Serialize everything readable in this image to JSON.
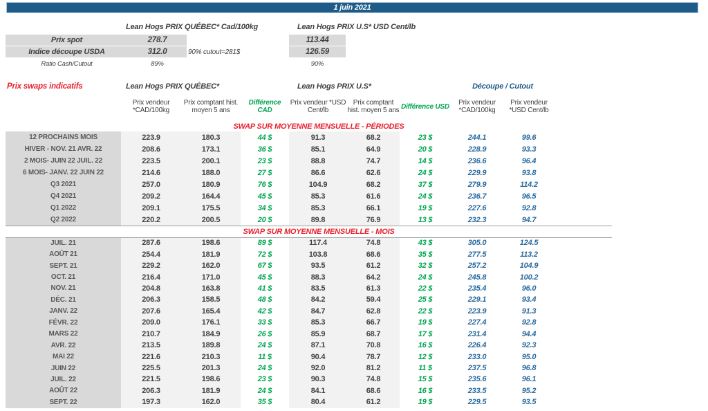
{
  "header": {
    "date": "1 juin 2021"
  },
  "colors": {
    "banner_blue": "#1f5b88",
    "accent_red": "#e8212e",
    "diff_green": "#00a651",
    "cutout_blue": "#2a6a9e",
    "label_gray_bg": "#d9d9d9",
    "band_gray_bg": "#f2f2f2"
  },
  "spot": {
    "quebec_title": "Lean Hogs PRIX QUÉBEC* Cad/100kg",
    "us_title": "Lean Hogs PRIX U.S* USD Cent/lb",
    "rows": [
      {
        "label": "Prix spot",
        "quebec": "278.7",
        "us": "113.44"
      },
      {
        "label": "Indice découpe USDA",
        "quebec": "312.0",
        "us": "126.59",
        "note": "90% cutout=281$"
      },
      {
        "label": "Ratio Cash/Cutout",
        "quebec": "89%",
        "us": "90%"
      }
    ]
  },
  "swaps": {
    "title": "Prix swaps indicatifs",
    "quebec_header": "Lean Hogs PRIX QUÉBEC*",
    "us_header": "Lean Hogs PRIX U.S*",
    "cutout_header": "Découpe / Cutout",
    "columns": [
      "Prix vendeur *CAD/100kg",
      "Prix comptant hist. moyen 5 ans",
      "Différence CAD",
      "Prix vendeur *USD Cent/lb",
      "Prix comptant hist. moyen 5 ans",
      "Différence USD",
      "Prix vendeur *CAD/100kg",
      "Prix vendeur *USD Cent/lb"
    ],
    "periods_title": "SWAP SUR MOYENNE MENSUELLE - PÉRIODES",
    "months_title": "SWAP SUR MOYENNE MENSUELLE - MOIS",
    "periods": [
      [
        "12 PROCHAINS MOIS",
        "223.9",
        "180.3",
        "44 $",
        "91.3",
        "68.2",
        "23 $",
        "244.1",
        "99.6"
      ],
      [
        "HIVER - NOV. 21 AVR. 22",
        "208.6",
        "173.1",
        "36 $",
        "85.1",
        "64.9",
        "20 $",
        "228.9",
        "93.3"
      ],
      [
        "2 MOIS- JUIN 22 JUIL. 22",
        "223.5",
        "200.1",
        "23 $",
        "88.8",
        "74.7",
        "14 $",
        "236.6",
        "96.4"
      ],
      [
        "6 MOIS- JANV. 22 JUIN 22",
        "214.6",
        "188.0",
        "27 $",
        "86.6",
        "62.6",
        "24 $",
        "229.9",
        "93.8"
      ],
      [
        "Q3 2021",
        "257.0",
        "180.9",
        "76 $",
        "104.9",
        "68.2",
        "37 $",
        "279.9",
        "114.2"
      ],
      [
        "Q4 2021",
        "209.2",
        "164.4",
        "45 $",
        "85.3",
        "61.6",
        "24 $",
        "236.7",
        "96.5"
      ],
      [
        "Q1 2022",
        "209.1",
        "175.5",
        "34 $",
        "85.3",
        "66.1",
        "19 $",
        "227.6",
        "92.8"
      ],
      [
        "Q2 2022",
        "220.2",
        "200.5",
        "20 $",
        "89.8",
        "76.9",
        "13 $",
        "232.3",
        "94.7"
      ]
    ],
    "months": [
      [
        "JUIL. 21",
        "287.6",
        "198.6",
        "89 $",
        "117.4",
        "74.8",
        "43 $",
        "305.0",
        "124.5"
      ],
      [
        "AOÛT 21",
        "254.4",
        "181.9",
        "72 $",
        "103.8",
        "68.6",
        "35 $",
        "277.5",
        "113.2"
      ],
      [
        "SEPT. 21",
        "229.2",
        "162.0",
        "67 $",
        "93.5",
        "61.2",
        "32 $",
        "257.2",
        "104.9"
      ],
      [
        "OCT. 21",
        "216.4",
        "171.0",
        "45 $",
        "88.3",
        "64.2",
        "24 $",
        "245.8",
        "100.2"
      ],
      [
        "NOV. 21",
        "204.8",
        "163.8",
        "41 $",
        "83.5",
        "61.3",
        "22 $",
        "235.4",
        "96.0"
      ],
      [
        "DÉC. 21",
        "206.3",
        "158.5",
        "48 $",
        "84.2",
        "59.4",
        "25 $",
        "229.1",
        "93.4"
      ],
      [
        "JANV. 22",
        "207.6",
        "165.4",
        "42 $",
        "84.7",
        "62.8",
        "22 $",
        "223.9",
        "91.3"
      ],
      [
        "FÉVR. 22",
        "209.0",
        "176.1",
        "33 $",
        "85.3",
        "66.7",
        "19 $",
        "227.4",
        "92.8"
      ],
      [
        "MARS 22",
        "210.7",
        "184.9",
        "26 $",
        "85.9",
        "68.7",
        "17 $",
        "231.4",
        "94.4"
      ],
      [
        "AVR. 22",
        "213.5",
        "189.8",
        "24 $",
        "87.1",
        "70.8",
        "16 $",
        "226.4",
        "92.3"
      ],
      [
        "MAI 22",
        "221.6",
        "210.3",
        "11 $",
        "90.4",
        "78.7",
        "12 $",
        "233.0",
        "95.0"
      ],
      [
        "JUIN 22",
        "225.5",
        "201.3",
        "24 $",
        "92.0",
        "81.2",
        "11 $",
        "237.5",
        "96.8"
      ],
      [
        "JUIL. 22",
        "221.5",
        "198.6",
        "23 $",
        "90.3",
        "74.8",
        "15 $",
        "235.6",
        "96.1"
      ],
      [
        "AOÛT 22",
        "206.3",
        "181.9",
        "24 $",
        "84.1",
        "68.6",
        "16 $",
        "233.5",
        "95.2"
      ],
      [
        "SEPT. 22",
        "197.3",
        "162.0",
        "35 $",
        "80.4",
        "61.2",
        "19 $",
        "229.5",
        "93.5"
      ]
    ]
  }
}
